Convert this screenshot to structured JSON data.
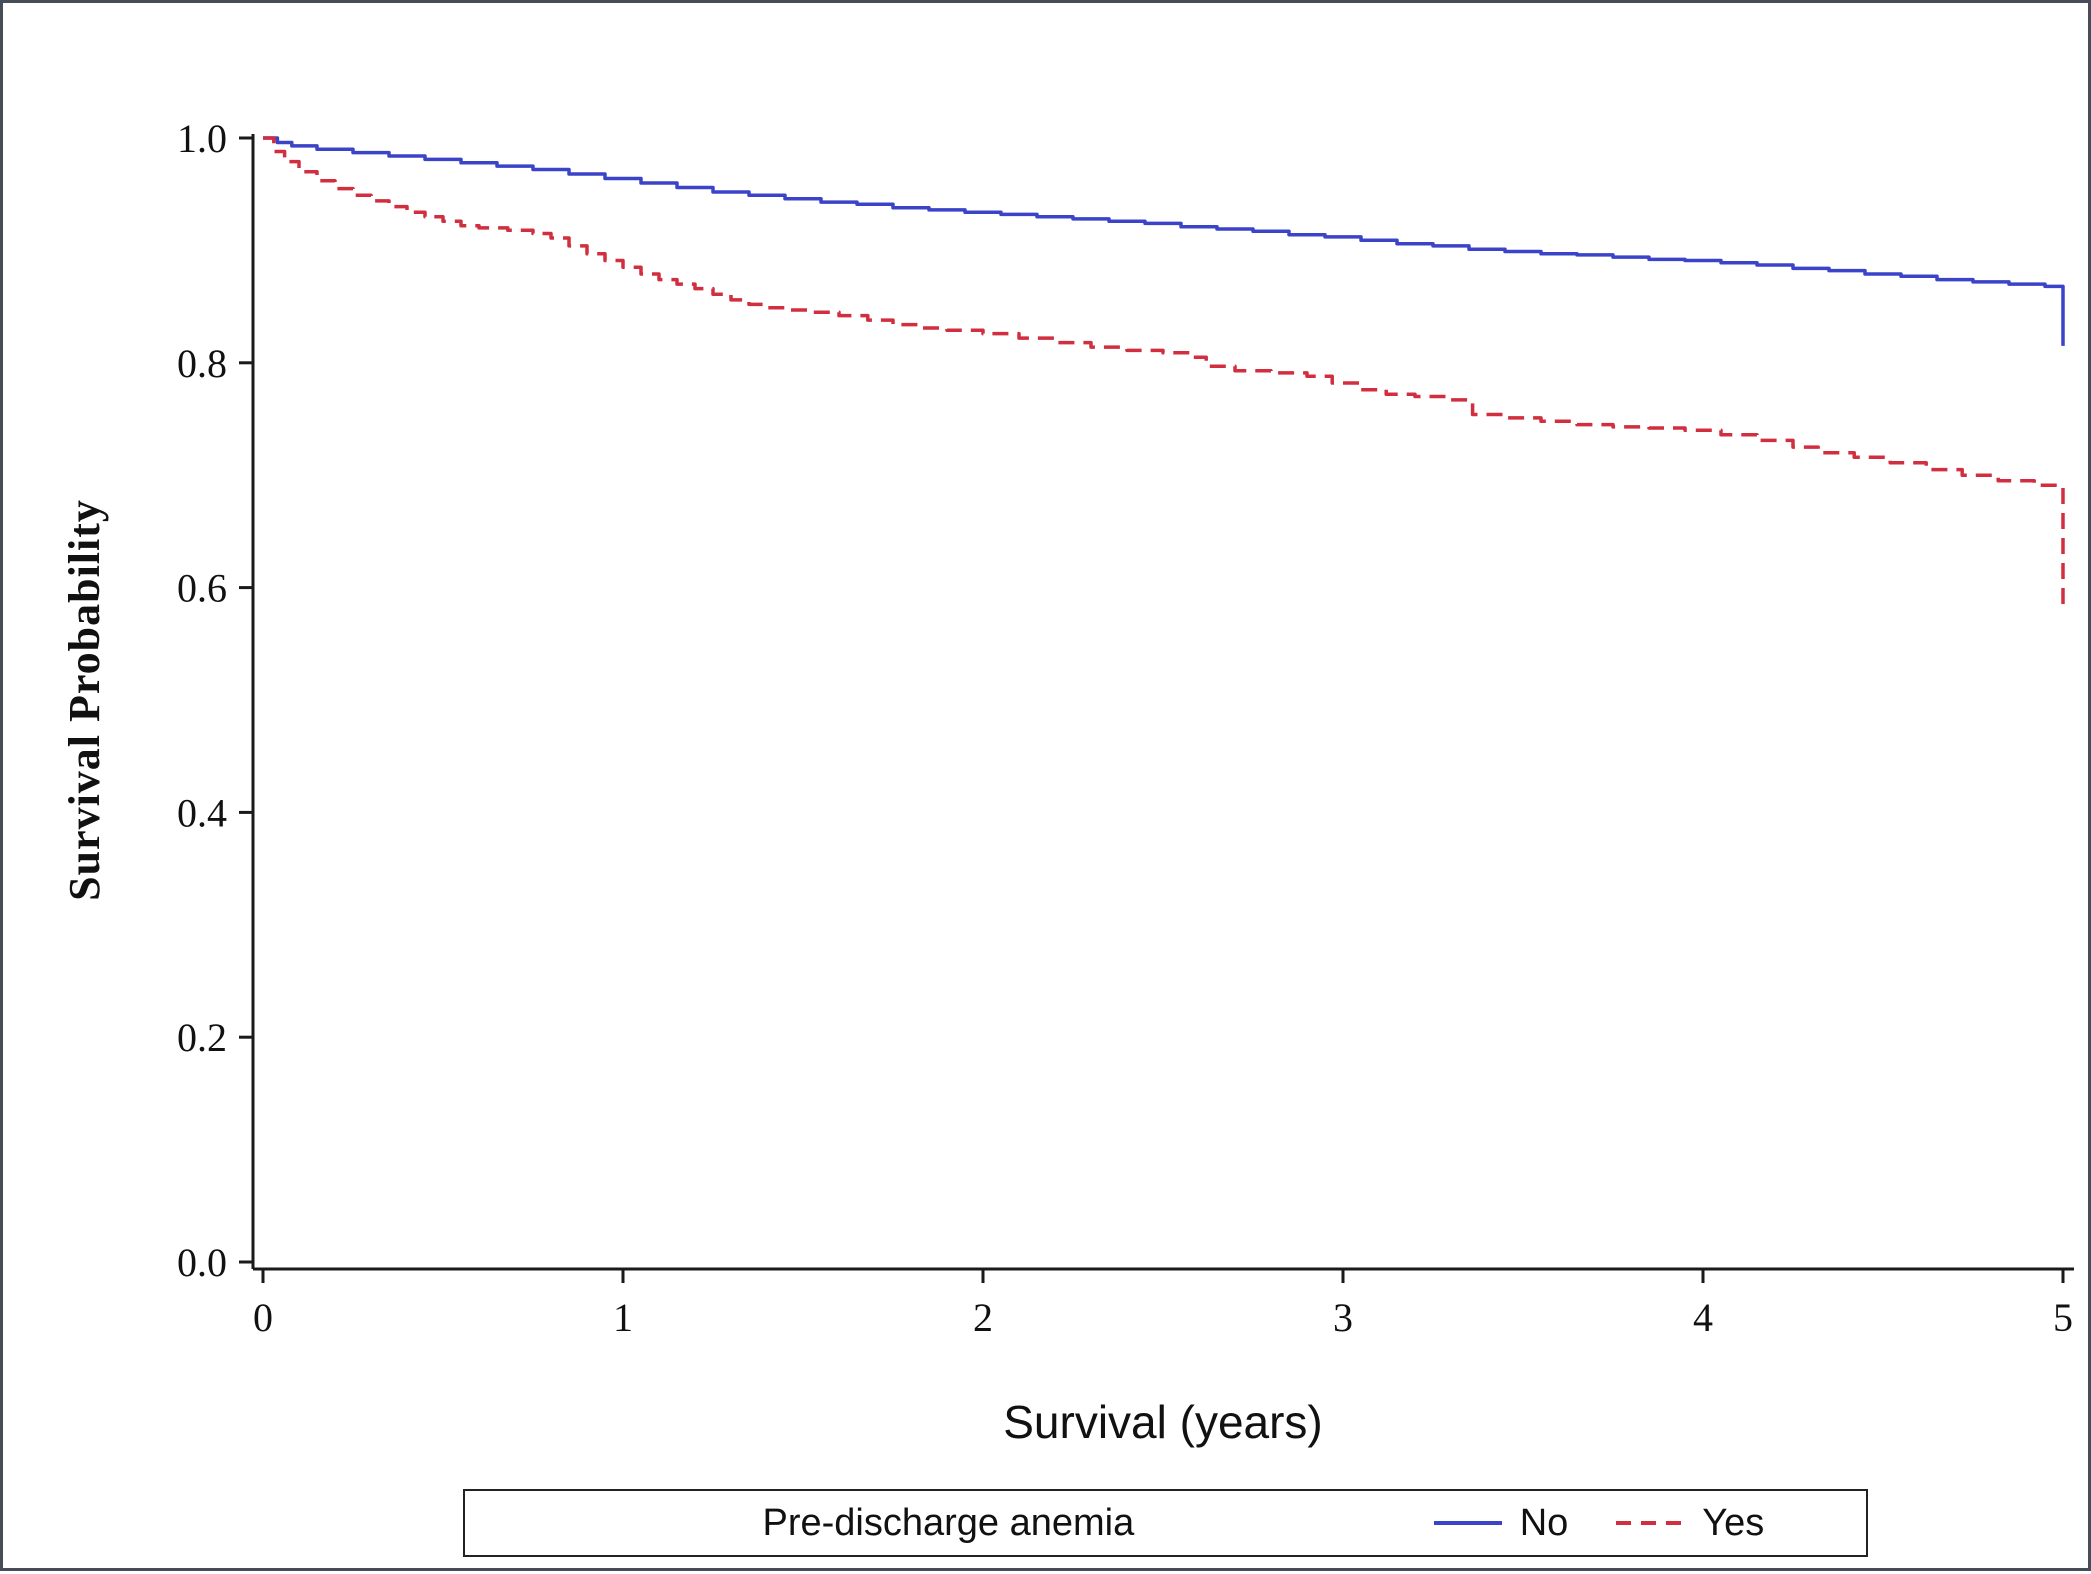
{
  "figure": {
    "background": "#ffffff",
    "border_color": "#474d58"
  },
  "chart_data": {
    "type": "line",
    "subtype": "kaplan-meier-step",
    "title": "",
    "xlabel": "Survival (years)",
    "ylabel": "Survival Probability",
    "xlim": [
      0,
      5
    ],
    "ylim": [
      0,
      1.0
    ],
    "xticks": [
      0,
      1,
      2,
      3,
      4,
      5
    ],
    "xtick_labels": [
      "0",
      "1",
      "2",
      "3",
      "4",
      "5"
    ],
    "yticks": [
      0.0,
      0.2,
      0.4,
      0.6,
      0.8,
      1.0
    ],
    "ytick_labels": [
      "0.0",
      "0.2",
      "0.4",
      "0.6",
      "0.8",
      "1.0"
    ],
    "grid": false,
    "axis_color": "#1a1a1a",
    "legend": {
      "position": "bottom",
      "title": "Pre-discharge anemia",
      "entries": [
        {
          "label": "No",
          "color": "#3b44c8",
          "style": "solid"
        },
        {
          "label": "Yes",
          "color": "#d12e3f",
          "style": "dashed"
        }
      ]
    },
    "series": [
      {
        "name": "No",
        "color": "#3b44c8",
        "line_style": "solid",
        "points": [
          [
            0,
            1.0
          ],
          [
            0.04,
            0.996
          ],
          [
            0.08,
            0.993
          ],
          [
            0.15,
            0.99
          ],
          [
            0.25,
            0.987
          ],
          [
            0.35,
            0.984
          ],
          [
            0.45,
            0.981
          ],
          [
            0.55,
            0.978
          ],
          [
            0.65,
            0.975
          ],
          [
            0.75,
            0.972
          ],
          [
            0.85,
            0.968
          ],
          [
            0.95,
            0.964
          ],
          [
            1.05,
            0.96
          ],
          [
            1.15,
            0.956
          ],
          [
            1.25,
            0.952
          ],
          [
            1.35,
            0.949
          ],
          [
            1.45,
            0.946
          ],
          [
            1.55,
            0.943
          ],
          [
            1.65,
            0.941
          ],
          [
            1.75,
            0.938
          ],
          [
            1.85,
            0.936
          ],
          [
            1.95,
            0.934
          ],
          [
            2.05,
            0.932
          ],
          [
            2.15,
            0.93
          ],
          [
            2.25,
            0.928
          ],
          [
            2.35,
            0.926
          ],
          [
            2.45,
            0.924
          ],
          [
            2.55,
            0.921
          ],
          [
            2.65,
            0.919
          ],
          [
            2.75,
            0.917
          ],
          [
            2.85,
            0.914
          ],
          [
            2.95,
            0.912
          ],
          [
            3.05,
            0.909
          ],
          [
            3.15,
            0.906
          ],
          [
            3.25,
            0.904
          ],
          [
            3.35,
            0.901
          ],
          [
            3.45,
            0.899
          ],
          [
            3.55,
            0.897
          ],
          [
            3.65,
            0.896
          ],
          [
            3.75,
            0.894
          ],
          [
            3.85,
            0.892
          ],
          [
            3.95,
            0.891
          ],
          [
            4.05,
            0.889
          ],
          [
            4.15,
            0.887
          ],
          [
            4.25,
            0.884
          ],
          [
            4.35,
            0.882
          ],
          [
            4.45,
            0.879
          ],
          [
            4.55,
            0.877
          ],
          [
            4.65,
            0.874
          ],
          [
            4.75,
            0.872
          ],
          [
            4.85,
            0.87
          ],
          [
            4.95,
            0.868
          ],
          [
            5.0,
            0.866
          ],
          [
            5.0,
            0.815
          ]
        ]
      },
      {
        "name": "Yes",
        "color": "#d12e3f",
        "line_style": "dashed",
        "points": [
          [
            0,
            1.0
          ],
          [
            0.03,
            0.988
          ],
          [
            0.06,
            0.979
          ],
          [
            0.1,
            0.97
          ],
          [
            0.15,
            0.962
          ],
          [
            0.2,
            0.955
          ],
          [
            0.25,
            0.949
          ],
          [
            0.3,
            0.944
          ],
          [
            0.35,
            0.939
          ],
          [
            0.4,
            0.934
          ],
          [
            0.45,
            0.93
          ],
          [
            0.5,
            0.926
          ],
          [
            0.55,
            0.922
          ],
          [
            0.6,
            0.92
          ],
          [
            0.68,
            0.918
          ],
          [
            0.75,
            0.915
          ],
          [
            0.8,
            0.911
          ],
          [
            0.85,
            0.904
          ],
          [
            0.9,
            0.897
          ],
          [
            0.95,
            0.891
          ],
          [
            1.0,
            0.885
          ],
          [
            1.05,
            0.879
          ],
          [
            1.1,
            0.874
          ],
          [
            1.15,
            0.87
          ],
          [
            1.2,
            0.866
          ],
          [
            1.25,
            0.861
          ],
          [
            1.3,
            0.856
          ],
          [
            1.35,
            0.852
          ],
          [
            1.4,
            0.849
          ],
          [
            1.45,
            0.847
          ],
          [
            1.52,
            0.845
          ],
          [
            1.6,
            0.842
          ],
          [
            1.68,
            0.838
          ],
          [
            1.75,
            0.834
          ],
          [
            1.82,
            0.831
          ],
          [
            1.9,
            0.829
          ],
          [
            2.0,
            0.826
          ],
          [
            2.1,
            0.822
          ],
          [
            2.2,
            0.818
          ],
          [
            2.3,
            0.814
          ],
          [
            2.4,
            0.811
          ],
          [
            2.5,
            0.809
          ],
          [
            2.58,
            0.805
          ],
          [
            2.62,
            0.797
          ],
          [
            2.7,
            0.793
          ],
          [
            2.8,
            0.791
          ],
          [
            2.9,
            0.788
          ],
          [
            2.97,
            0.782
          ],
          [
            3.05,
            0.776
          ],
          [
            3.12,
            0.772
          ],
          [
            3.2,
            0.77
          ],
          [
            3.3,
            0.767
          ],
          [
            3.36,
            0.754
          ],
          [
            3.45,
            0.751
          ],
          [
            3.55,
            0.748
          ],
          [
            3.65,
            0.745
          ],
          [
            3.75,
            0.743
          ],
          [
            3.85,
            0.742
          ],
          [
            3.95,
            0.74
          ],
          [
            4.05,
            0.736
          ],
          [
            4.15,
            0.731
          ],
          [
            4.25,
            0.725
          ],
          [
            4.32,
            0.72
          ],
          [
            4.42,
            0.716
          ],
          [
            4.52,
            0.711
          ],
          [
            4.62,
            0.705
          ],
          [
            4.72,
            0.7
          ],
          [
            4.82,
            0.695
          ],
          [
            4.92,
            0.691
          ],
          [
            5.0,
            0.688
          ],
          [
            5.0,
            0.578
          ]
        ]
      }
    ]
  }
}
